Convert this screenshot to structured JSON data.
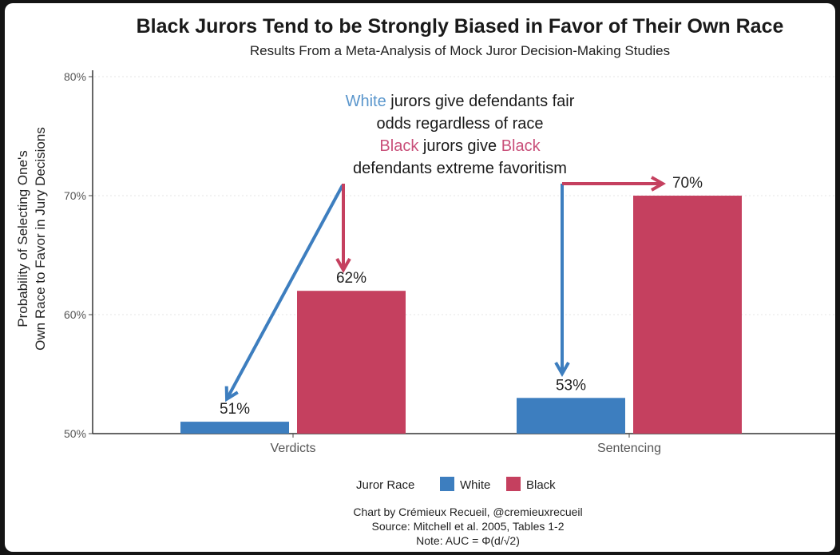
{
  "colors": {
    "white": "#3d7ebf",
    "black": "#c5405f"
  },
  "chart_data": {
    "type": "bar",
    "title": "Black Jurors Tend to be Strongly Biased in Favor of Their Own Race",
    "subtitle": "Results From a Meta-Analysis of Mock Juror Decision-Making Studies",
    "xlabel": "",
    "ylabel_lines": [
      "Probability of Selecting One's",
      "Own Race to Favor in Jury Decisions"
    ],
    "ylim": [
      50,
      80
    ],
    "yticks": [
      50,
      60,
      70,
      80
    ],
    "ytick_labels": [
      "50%",
      "60%",
      "70%",
      "80%"
    ],
    "categories": [
      "Verdicts",
      "Sentencing"
    ],
    "series": [
      {
        "name": "White",
        "values": [
          51,
          53
        ],
        "labels": [
          "51%",
          "53%"
        ]
      },
      {
        "name": "Black",
        "values": [
          62,
          70
        ],
        "labels": [
          "62%",
          "70%"
        ]
      }
    ],
    "grid": true,
    "legend": {
      "title": "Juror Race",
      "placement": "bottom"
    },
    "annotation": {
      "line1_highlight": "White",
      "line1_rest": " jurors give defendants fair",
      "line2": "odds regardless of race",
      "line3_highlight": "Black",
      "line3_mid": " jurors give ",
      "line3_highlight2": "Black",
      "line4": "defendants extreme favoritism"
    },
    "caption": [
      "Chart by Crémieux Recueil, @cremieuxrecueil",
      "Source: Mitchell et al. 2005, Tables 1-2",
      "Note: AUC = Φ(d/√2)"
    ]
  }
}
